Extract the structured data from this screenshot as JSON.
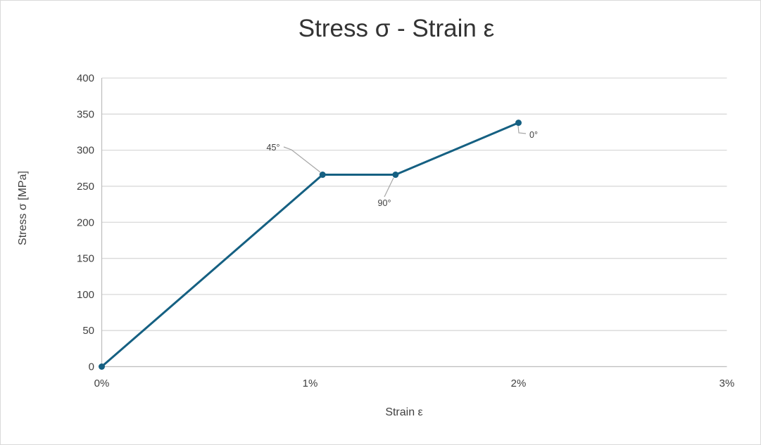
{
  "window": {
    "background_color": "#FFFFFF",
    "border_color": "#D9D9D9"
  },
  "chart_data": {
    "type": "line",
    "title": "Stress σ - Strain ε",
    "xlabel": "Strain ε",
    "ylabel": "Stress σ [MPa]",
    "xlim": [
      0,
      3
    ],
    "ylim": [
      0,
      400
    ],
    "grid": "horizontal-only",
    "legend": "none",
    "x_ticks": [
      {
        "value": 0,
        "label": "0%"
      },
      {
        "value": 1,
        "label": "1%"
      },
      {
        "value": 2,
        "label": "2%"
      },
      {
        "value": 3,
        "label": "3%"
      }
    ],
    "y_ticks": [
      {
        "value": 0,
        "label": "0"
      },
      {
        "value": 50,
        "label": "50"
      },
      {
        "value": 100,
        "label": "100"
      },
      {
        "value": 150,
        "label": "150"
      },
      {
        "value": 200,
        "label": "200"
      },
      {
        "value": 250,
        "label": "250"
      },
      {
        "value": 300,
        "label": "300"
      },
      {
        "value": 350,
        "label": "350"
      },
      {
        "value": 400,
        "label": "400"
      }
    ],
    "colors": {
      "series": "#156082",
      "gridline": "#D9D9D9",
      "axis_line": "#BFBFBF",
      "tick_text": "#404040",
      "title_text": "#333333",
      "annotation_text": "#404040",
      "leader_line": "#A6A6A6"
    },
    "series": [
      {
        "name": "Stress-Strain curve",
        "color": "#156082",
        "marker": "circle",
        "points": [
          {
            "strain_pct": 0,
            "stress_mpa": 0
          },
          {
            "strain_pct": 1.06,
            "stress_mpa": 266,
            "label": "45°"
          },
          {
            "strain_pct": 1.41,
            "stress_mpa": 266,
            "label": "90°"
          },
          {
            "strain_pct": 2.0,
            "stress_mpa": 338,
            "label": "0°"
          }
        ]
      }
    ]
  }
}
